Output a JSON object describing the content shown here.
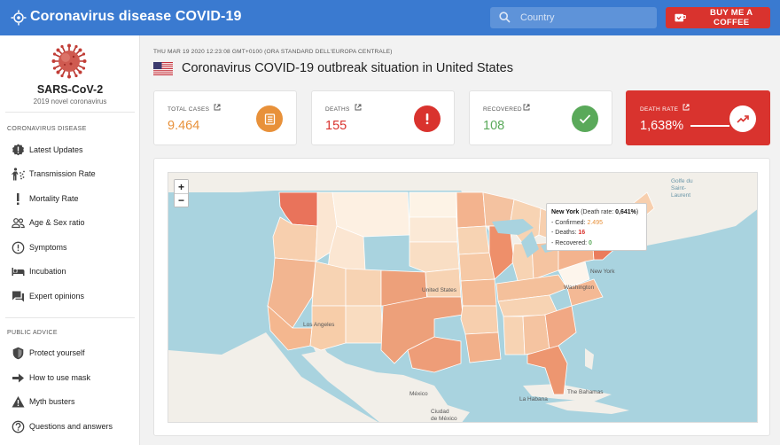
{
  "header": {
    "title": "Coronavirus disease COVID-19",
    "search_placeholder": "Country",
    "coffee_label": "BUY ME A COFFEE"
  },
  "sidebar": {
    "brand": "SARS-CoV-2",
    "brand_sub": "2019 novel coronavirus",
    "section1": "CORONAVIRUS DISEASE",
    "items1": [
      {
        "label": "Latest Updates",
        "icon": "badge-alert-icon"
      },
      {
        "label": "Transmission Rate",
        "icon": "person-spread-icon"
      },
      {
        "label": "Mortality Rate",
        "icon": "exclamation-icon"
      },
      {
        "label": "Age & Sex ratio",
        "icon": "people-icon"
      },
      {
        "label": "Symptoms",
        "icon": "alert-circle-icon"
      },
      {
        "label": "Incubation",
        "icon": "bed-icon"
      },
      {
        "label": "Expert opinions",
        "icon": "chat-icon"
      }
    ],
    "section2": "PUBLIC ADVICE",
    "items2": [
      {
        "label": "Protect yourself",
        "icon": "shield-icon"
      },
      {
        "label": "How to use mask",
        "icon": "arrow-right-icon"
      },
      {
        "label": "Myth busters",
        "icon": "warning-icon"
      },
      {
        "label": "Questions and answers",
        "icon": "question-icon"
      }
    ]
  },
  "main": {
    "date": "THU MAR 19 2020 12:23:08 GMT+0100 (ORA STANDARD DELL'EUROPA CENTRALE)",
    "title": "Coronavirus COVID-19 outbreak situation in United States",
    "cards": {
      "total": {
        "label": "TOTAL CASES",
        "value": "9.464",
        "color": "#e8913a"
      },
      "deaths": {
        "label": "DEATHS",
        "value": "155",
        "color": "#d9332e"
      },
      "recovered": {
        "label": "RECOVERED",
        "value": "108",
        "color": "#5aa95a"
      },
      "rate": {
        "label": "DEATH RATE",
        "value": "1,638%",
        "color": "#d9332e"
      }
    }
  },
  "map": {
    "zoom_in": "+",
    "zoom_out": "−",
    "tooltip": {
      "state": "New York",
      "rate_text": "(Death rate: ",
      "rate_value": "0,641%",
      "rate_close": ")",
      "confirmed_label": "- Confirmed: ",
      "confirmed": "2.495",
      "deaths_label": "- Deaths: ",
      "deaths": "16",
      "recovered_label": "- Recovered: ",
      "recovered": "0"
    },
    "labels": {
      "us": "United States",
      "la": "Los Angeles",
      "ny": "New York",
      "wash": "Washington",
      "mex": "México",
      "cdm": "Ciudad\nde México",
      "habana": "La Habana",
      "bahamas": "The Bahamas",
      "gulf": "Golfe du\nSaint-\nLaurent"
    }
  }
}
